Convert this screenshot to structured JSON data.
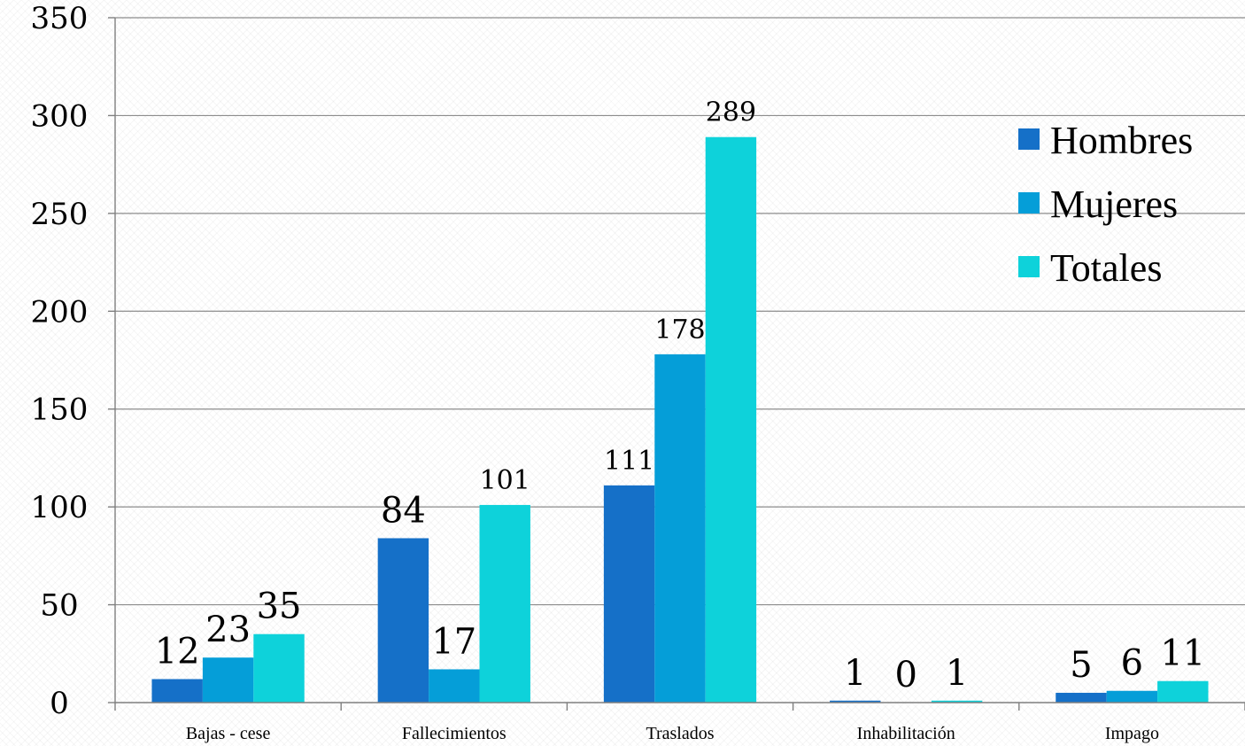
{
  "chart_data": {
    "type": "bar",
    "title": "",
    "xlabel": "",
    "ylabel": "",
    "categories": [
      "Bajas - cese",
      "Fallecimientos",
      "Traslados",
      "Inhabilitación",
      "Impago"
    ],
    "series": [
      {
        "name": "Hombres",
        "color": "#1570c8",
        "values": [
          12,
          84,
          111,
          1,
          5
        ]
      },
      {
        "name": "Mujeres",
        "color": "#059ed8",
        "values": [
          23,
          17,
          178,
          0,
          6
        ]
      },
      {
        "name": "Totales",
        "color": "#0ed2da",
        "values": [
          35,
          101,
          289,
          1,
          11
        ]
      }
    ],
    "ylim": [
      0,
      350
    ],
    "yticks": [
      0,
      50,
      100,
      150,
      200,
      250,
      300,
      350
    ],
    "grid": true,
    "data_labels": true,
    "legend_position": "right"
  }
}
